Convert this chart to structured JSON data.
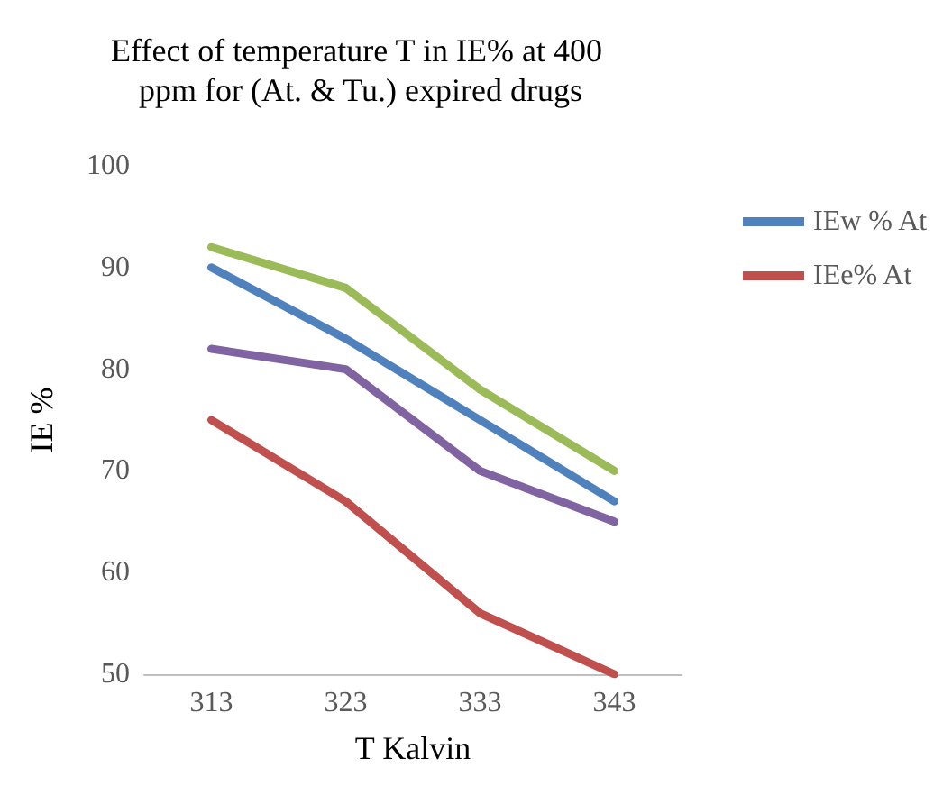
{
  "chart_data": {
    "type": "line",
    "title": "Effect of temperature T in IE% at 400 ppm for (At. & Tu.) expired drugs",
    "xlabel": "T Kalvin",
    "ylabel": "IE %",
    "categories": [
      "313",
      "323",
      "333",
      "343"
    ],
    "series": [
      {
        "color": "#9bbb59",
        "values": [
          92,
          88,
          78,
          70
        ]
      },
      {
        "name": "IEw % At",
        "color": "#4f81bd",
        "values": [
          90,
          83,
          75,
          67
        ]
      },
      {
        "color": "#8064a2",
        "values": [
          82,
          80,
          70,
          65
        ]
      },
      {
        "name": "IEe% At",
        "color": "#c0504d",
        "values": [
          75,
          67,
          56,
          50
        ]
      }
    ],
    "ylim": [
      50,
      100
    ],
    "yticks": [
      50,
      60,
      70,
      80,
      90,
      100
    ],
    "grid": false,
    "legend": "right",
    "marker": "none",
    "line_style": "solid"
  }
}
